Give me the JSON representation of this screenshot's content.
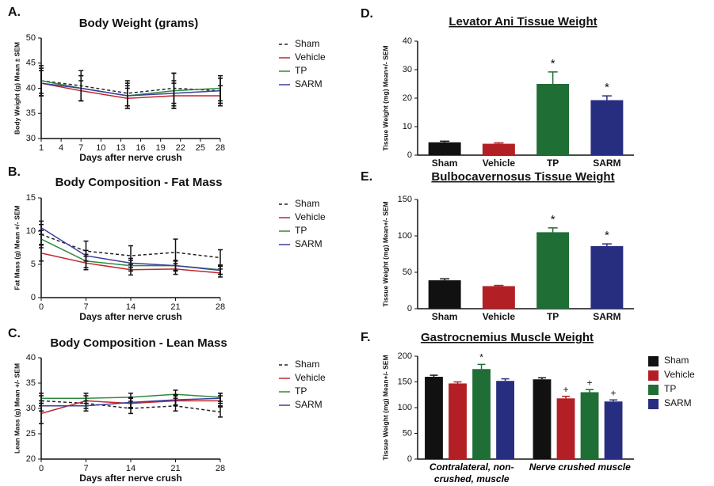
{
  "chart_data": [
    {
      "type": "line",
      "panel": "A.",
      "title": "Body Weight (grams)",
      "ylabel": "Body Weight (g) Mean ± SEM",
      "xlabel": "Days after nerve crush",
      "x": [
        1,
        7,
        14,
        21,
        28
      ],
      "xlim": [
        1,
        28
      ],
      "xticks": [
        1,
        4,
        7,
        10,
        13,
        16,
        19,
        22,
        25,
        28
      ],
      "ylim": [
        30,
        50
      ],
      "yticks": [
        30,
        35,
        40,
        45,
        50
      ],
      "series": [
        {
          "name": "Sham",
          "color": "#222222",
          "dashed": true,
          "values": [
            41.5,
            40.5,
            39,
            40,
            39.5
          ],
          "errors": [
            3,
            3,
            2.5,
            3,
            2.5
          ]
        },
        {
          "name": "Vehicle",
          "color": "#c0272d",
          "values": [
            41,
            39.5,
            38,
            38.5,
            38.5
          ],
          "errors": [
            2.5,
            2,
            2,
            2.5,
            2
          ]
        },
        {
          "name": "TP",
          "color": "#2e8b3e",
          "values": [
            41.5,
            40,
            38.5,
            39.5,
            40
          ],
          "errors": [
            2.5,
            2.5,
            2,
            3.5,
            2.5
          ]
        },
        {
          "name": "SARM",
          "color": "#3b3f9e",
          "values": [
            41,
            40,
            38.5,
            39,
            39.5
          ],
          "errors": [
            2.5,
            2.5,
            2.5,
            2.5,
            2.5
          ]
        }
      ]
    },
    {
      "type": "line",
      "panel": "B.",
      "title": "Body Composition - Fat Mass",
      "ylabel": "Fat Mass (g) Mean +/- SEM",
      "xlabel": "Days after nerve crush",
      "x": [
        0,
        7,
        14,
        21,
        28
      ],
      "xlim": [
        0,
        28
      ],
      "xticks": [
        0,
        7,
        14,
        21,
        28
      ],
      "ylim": [
        0,
        15
      ],
      "yticks": [
        0,
        5,
        10,
        15
      ],
      "series": [
        {
          "name": "Sham",
          "color": "#222222",
          "dashed": true,
          "values": [
            9.5,
            7,
            6.3,
            6.8,
            6
          ],
          "errors": [
            1.5,
            1.5,
            1.5,
            2,
            1.2
          ]
        },
        {
          "name": "Vehicle",
          "color": "#c0272d",
          "values": [
            6.7,
            5.2,
            4.2,
            4.3,
            3.7
          ],
          "errors": [
            1.2,
            1,
            0.8,
            0.8,
            0.6
          ]
        },
        {
          "name": "TP",
          "color": "#2e8b3e",
          "values": [
            8.8,
            5.5,
            4.8,
            4.8,
            4.2
          ],
          "errors": [
            1.3,
            1,
            0.8,
            0.8,
            0.7
          ]
        },
        {
          "name": "SARM",
          "color": "#3b3f9e",
          "values": [
            10.5,
            6.3,
            5.2,
            4.8,
            4.1
          ],
          "errors": [
            1,
            0.8,
            0.7,
            0.7,
            0.6
          ]
        }
      ]
    },
    {
      "type": "line",
      "panel": "C.",
      "title": "Body Composition - Lean Mass",
      "ylabel": "Lean Mass (g) Mean +/- SEM",
      "xlabel": "Days after nerve crush",
      "x": [
        0,
        7,
        14,
        21,
        28
      ],
      "xlim": [
        0,
        28
      ],
      "xticks": [
        0,
        7,
        14,
        21,
        28
      ],
      "ylim": [
        20,
        40
      ],
      "yticks": [
        20,
        25,
        30,
        35,
        40
      ],
      "series": [
        {
          "name": "Sham",
          "color": "#222222",
          "dashed": true,
          "values": [
            31.5,
            31,
            30,
            30.5,
            29.3
          ],
          "errors": [
            1,
            1,
            1,
            1,
            1
          ]
        },
        {
          "name": "Vehicle",
          "color": "#c0272d",
          "values": [
            29,
            31.5,
            31,
            31.5,
            31.5
          ],
          "errors": [
            2,
            1,
            1,
            1,
            1
          ]
        },
        {
          "name": "TP",
          "color": "#2e8b3e",
          "values": [
            32,
            32,
            32.2,
            32.8,
            32.2
          ],
          "errors": [
            1,
            1,
            0.8,
            0.8,
            0.8
          ]
        },
        {
          "name": "SARM",
          "color": "#3b3f9e",
          "values": [
            30.5,
            30.5,
            31.2,
            31.7,
            32
          ],
          "errors": [
            1,
            1,
            1,
            1,
            1
          ]
        }
      ]
    },
    {
      "type": "bar",
      "panel": "D.",
      "title": "Levator Ani Tissue Weight",
      "ylabel": "Tissue Weight (mg) Mean+/- SEM",
      "categories": [
        "Sham",
        "Vehicle",
        "TP",
        "SARM"
      ],
      "values": [
        4.5,
        4,
        25,
        19.3
      ],
      "errors": [
        0.4,
        0.3,
        4.2,
        1.5
      ],
      "colors": [
        "#111111",
        "#b22025",
        "#1f6e35",
        "#282e7f"
      ],
      "annotations": [
        null,
        null,
        "*",
        "*"
      ],
      "ylim": [
        0,
        40
      ],
      "yticks": [
        0,
        10,
        20,
        30,
        40
      ]
    },
    {
      "type": "bar",
      "panel": "E.",
      "title": "Bulbocavernosus Tissue Weight",
      "ylabel": "Tissue Weight (mg) Mean+/- SEM",
      "categories": [
        "Sham",
        "Vehicle",
        "TP",
        "SARM"
      ],
      "values": [
        39,
        31,
        105,
        86
      ],
      "errors": [
        2,
        1,
        6,
        3
      ],
      "colors": [
        "#111111",
        "#b22025",
        "#1f6e35",
        "#282e7f"
      ],
      "annotations": [
        null,
        null,
        "*",
        "*"
      ],
      "ylim": [
        0,
        150
      ],
      "yticks": [
        0,
        50,
        100,
        150
      ]
    },
    {
      "type": "grouped_bar",
      "panel": "F.",
      "title": "Gastrocnemius Muscle Weight",
      "ylabel": "Tissue Weight (mg) Mean+/- SEM",
      "categories": [
        "Contralateral, non-crushed, muscle",
        "Nerve crushed muscle"
      ],
      "ylim": [
        0,
        200
      ],
      "yticks": [
        0,
        50,
        100,
        150,
        200
      ],
      "series": [
        {
          "name": "Sham",
          "color": "#111111",
          "values": [
            160,
            155
          ],
          "errors": [
            3,
            3
          ],
          "annotations": [
            null,
            null
          ]
        },
        {
          "name": "Vehicle",
          "color": "#b22025",
          "values": [
            147,
            118
          ],
          "errors": [
            3,
            4
          ],
          "annotations": [
            null,
            "+"
          ]
        },
        {
          "name": "TP",
          "color": "#1f6e35",
          "values": [
            175,
            130
          ],
          "errors": [
            9,
            5
          ],
          "annotations": [
            "*",
            "+"
          ]
        },
        {
          "name": "SARM",
          "color": "#282e7f",
          "values": [
            152,
            112
          ],
          "errors": [
            4,
            3
          ],
          "annotations": [
            null,
            "+"
          ]
        }
      ]
    }
  ]
}
